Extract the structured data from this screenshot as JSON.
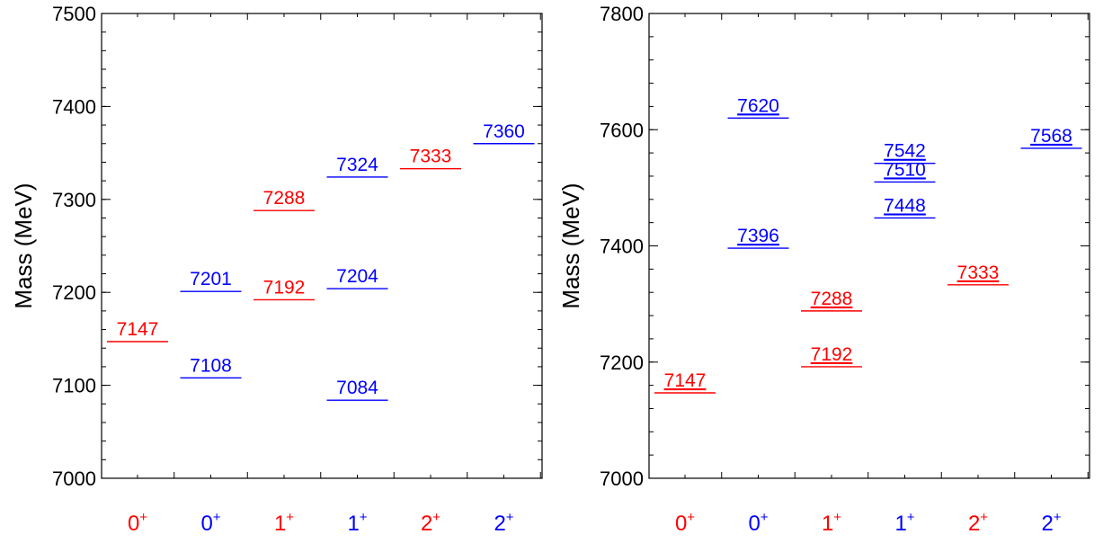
{
  "colors": {
    "red": "#ff0000",
    "blue": "#0000ff"
  },
  "chart_data": [
    {
      "type": "level-diagram",
      "ylabel": "Mass (MeV)",
      "ylim": [
        7000,
        7500
      ],
      "yticks": [
        7000,
        7100,
        7200,
        7300,
        7400,
        7500
      ],
      "yminor_step": 20,
      "grid": false,
      "categories": [
        {
          "label": "0",
          "sup": "+",
          "color": "red"
        },
        {
          "label": "0",
          "sup": "+",
          "color": "blue"
        },
        {
          "label": "1",
          "sup": "+",
          "color": "red"
        },
        {
          "label": "1",
          "sup": "+",
          "color": "blue"
        },
        {
          "label": "2",
          "sup": "+",
          "color": "red"
        },
        {
          "label": "2",
          "sup": "+",
          "color": "blue"
        }
      ],
      "levels": [
        {
          "category": 0,
          "value": 7147,
          "label": "7147",
          "color": "red"
        },
        {
          "category": 1,
          "value": 7201,
          "label": "7201",
          "color": "blue"
        },
        {
          "category": 1,
          "value": 7108,
          "label": "7108",
          "color": "blue"
        },
        {
          "category": 2,
          "value": 7288,
          "label": "7288",
          "color": "red"
        },
        {
          "category": 2,
          "value": 7192,
          "label": "7192",
          "color": "red"
        },
        {
          "category": 3,
          "value": 7324,
          "label": "7324",
          "color": "blue"
        },
        {
          "category": 3,
          "value": 7204,
          "label": "7204",
          "color": "blue"
        },
        {
          "category": 3,
          "value": 7084,
          "label": "7084",
          "color": "blue"
        },
        {
          "category": 4,
          "value": 7333,
          "label": "7333",
          "color": "red"
        },
        {
          "category": 5,
          "value": 7360,
          "label": "7360",
          "color": "blue"
        }
      ]
    },
    {
      "type": "level-diagram",
      "ylabel": "Mass (MeV)",
      "ylim": [
        7000,
        7800
      ],
      "yticks": [
        7000,
        7200,
        7400,
        7600,
        7800
      ],
      "yminor_step": 40,
      "grid": false,
      "underline_labels": true,
      "categories": [
        {
          "label": "0",
          "sup": "+",
          "color": "red"
        },
        {
          "label": "0",
          "sup": "+",
          "color": "blue"
        },
        {
          "label": "1",
          "sup": "+",
          "color": "red"
        },
        {
          "label": "1",
          "sup": "+",
          "color": "blue"
        },
        {
          "label": "2",
          "sup": "+",
          "color": "red"
        },
        {
          "label": "2",
          "sup": "+",
          "color": "blue"
        }
      ],
      "levels": [
        {
          "category": 0,
          "value": 7147,
          "label": "7147",
          "color": "red"
        },
        {
          "category": 1,
          "value": 7620,
          "label": "7620",
          "color": "blue"
        },
        {
          "category": 1,
          "value": 7396,
          "label": "7396",
          "color": "blue"
        },
        {
          "category": 2,
          "value": 7288,
          "label": "7288",
          "color": "red"
        },
        {
          "category": 2,
          "value": 7192,
          "label": "7192",
          "color": "red"
        },
        {
          "category": 3,
          "value": 7542,
          "label": "7542",
          "color": "blue"
        },
        {
          "category": 3,
          "value": 7510,
          "label": "7510",
          "color": "blue"
        },
        {
          "category": 3,
          "value": 7448,
          "label": "7448",
          "color": "blue"
        },
        {
          "category": 4,
          "value": 7333,
          "label": "7333",
          "color": "red"
        },
        {
          "category": 5,
          "value": 7568,
          "label": "7568",
          "color": "blue"
        }
      ]
    }
  ]
}
